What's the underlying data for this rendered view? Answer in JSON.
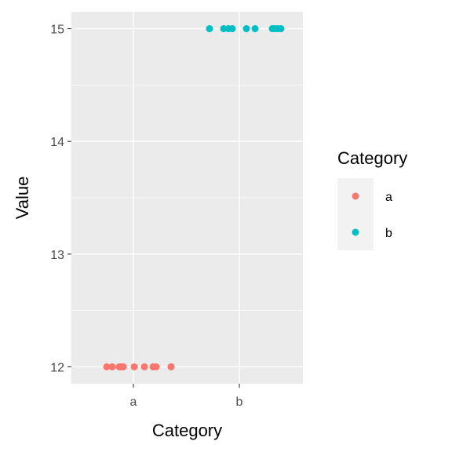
{
  "chart_data": {
    "type": "scatter",
    "title": "",
    "xlabel": "Category",
    "ylabel": "Value",
    "x_categories": [
      "a",
      "b"
    ],
    "yticks": [
      "12",
      "13",
      "14",
      "15"
    ],
    "ylim": [
      11.85,
      15.15
    ],
    "grid": true,
    "legend": {
      "title": "Category",
      "placement": "right",
      "entries": [
        {
          "label": "a",
          "color": "#F8766D"
        },
        {
          "label": "b",
          "color": "#00BFC4"
        }
      ]
    },
    "series": [
      {
        "name": "a",
        "color": "#F8766D",
        "points": [
          {
            "x": "a",
            "y": 12
          },
          {
            "x": "a",
            "y": 12
          },
          {
            "x": "a",
            "y": 12
          },
          {
            "x": "a",
            "y": 12
          },
          {
            "x": "a",
            "y": 12
          },
          {
            "x": "a",
            "y": 12
          },
          {
            "x": "a",
            "y": 12
          },
          {
            "x": "a",
            "y": 12
          },
          {
            "x": "a",
            "y": 12
          },
          {
            "x": "a",
            "y": 12
          }
        ]
      },
      {
        "name": "b",
        "color": "#00BFC4",
        "points": [
          {
            "x": "b",
            "y": 15
          },
          {
            "x": "b",
            "y": 15
          },
          {
            "x": "b",
            "y": 15
          },
          {
            "x": "b",
            "y": 15
          },
          {
            "x": "b",
            "y": 15
          },
          {
            "x": "b",
            "y": 15
          },
          {
            "x": "b",
            "y": 15
          },
          {
            "x": "b",
            "y": 15
          },
          {
            "x": "b",
            "y": 15
          },
          {
            "x": "b",
            "y": 15
          }
        ]
      }
    ]
  }
}
